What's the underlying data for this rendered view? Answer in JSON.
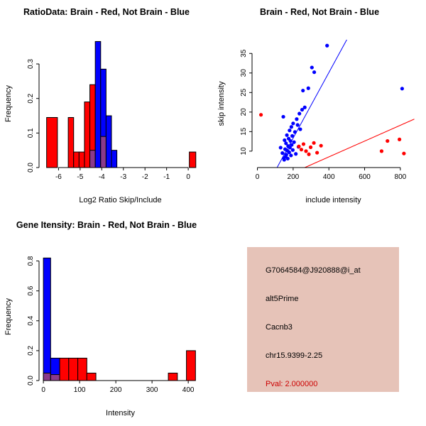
{
  "colors": {
    "brain": "#ff0000",
    "not_brain": "#0000ff",
    "overlap": "#8b3a8b",
    "axis": "#000000",
    "info_box_bg": "#e6c3b8",
    "pval_text": "#cc0000"
  },
  "panels": {
    "ratio_hist": {
      "title": "RatioData: Brain - Red, Not Brain - Blue",
      "xlabel": "Log2 Ratio Skip/Include",
      "ylabel": "Frequency"
    },
    "scatter": {
      "title": "Brain - Red, Not Brain - Blue",
      "xlabel": "include intensity",
      "ylabel": "skip intensity"
    },
    "gene_hist": {
      "title": "Gene Itensity: Brain - Red, Not Brain - Blue",
      "xlabel": "Intensity",
      "ylabel": "Frequency"
    },
    "info_box": {
      "probe_id": "G7064584@J920888@i_at",
      "event_type": "alt5Prime",
      "gene": "Cacnb3",
      "region": "chr15.9399-2.25",
      "pval": "Pval: 2.000000"
    }
  },
  "chart_data": [
    {
      "type": "bar",
      "panel": "ratio_hist",
      "title": "RatioData: Brain - Red, Not Brain - Blue",
      "xlabel": "Log2 Ratio Skip/Include",
      "ylabel": "Frequency",
      "xlim": [
        -6.9,
        0.62
      ],
      "ylim": [
        0,
        0.37
      ],
      "grid": false,
      "legend": "none",
      "xticks": [
        -6,
        -5,
        -4,
        -3,
        -2,
        -1,
        0
      ],
      "xtick_labels": [
        "-6",
        "-5",
        "-4",
        "-3",
        "-2",
        "-1",
        "0"
      ],
      "yticks": [
        0,
        0.1,
        0.2,
        0.3
      ],
      "ytick_labels": [
        "0.0",
        "0.1",
        "0.2",
        "0.3"
      ],
      "bars": [
        {
          "x0": -6.55,
          "x1": -6.05,
          "h": 0.145,
          "series": "brain"
        },
        {
          "x0": -5.55,
          "x1": -5.3,
          "h": 0.145,
          "series": "brain"
        },
        {
          "x0": -5.3,
          "x1": -5.05,
          "h": 0.045,
          "series": "brain"
        },
        {
          "x0": -5.05,
          "x1": -4.8,
          "h": 0.045,
          "series": "brain"
        },
        {
          "x0": -4.8,
          "x1": -4.55,
          "h": 0.19,
          "series": "brain"
        },
        {
          "x0": -4.55,
          "x1": -4.3,
          "h": 0.24,
          "series": "brain"
        },
        {
          "x0": -4.55,
          "x1": -4.3,
          "h": 0.05,
          "series": "overlap"
        },
        {
          "x0": -4.3,
          "x1": -4.05,
          "h": 0.365,
          "series": "not_brain"
        },
        {
          "x0": -4.05,
          "x1": -3.8,
          "h": 0.285,
          "series": "not_brain"
        },
        {
          "x0": -4.05,
          "x1": -3.8,
          "h": 0.09,
          "series": "overlap"
        },
        {
          "x0": -3.8,
          "x1": -3.55,
          "h": 0.15,
          "series": "not_brain"
        },
        {
          "x0": -3.55,
          "x1": -3.3,
          "h": 0.05,
          "series": "not_brain"
        },
        {
          "x0": 0.05,
          "x1": 0.35,
          "h": 0.045,
          "series": "brain"
        }
      ]
    },
    {
      "type": "scatter",
      "panel": "scatter",
      "title": "Brain - Red, Not Brain - Blue",
      "xlabel": "include intensity",
      "ylabel": "skip intensity",
      "xlim": [
        -30,
        880
      ],
      "ylim": [
        5.8,
        38.5
      ],
      "grid": false,
      "legend": "none",
      "xticks": [
        0,
        200,
        400,
        600,
        800
      ],
      "xtick_labels": [
        "0",
        "200",
        "400",
        "600",
        "800"
      ],
      "yticks": [
        10,
        15,
        20,
        25,
        30,
        35
      ],
      "ytick_labels": [
        "10",
        "15",
        "20",
        "25",
        "30",
        "35"
      ],
      "series": [
        {
          "name": "not_brain",
          "points": [
            [
              130,
              10.9
            ],
            [
              140,
              9.5
            ],
            [
              145,
              18.8
            ],
            [
              148,
              8.2
            ],
            [
              150,
              7.8
            ],
            [
              152,
              12.8
            ],
            [
              155,
              10.5
            ],
            [
              158,
              8.6
            ],
            [
              160,
              12.0
            ],
            [
              162,
              9.1
            ],
            [
              165,
              14.1
            ],
            [
              168,
              10.1
            ],
            [
              170,
              8.1
            ],
            [
              172,
              11.3
            ],
            [
              175,
              13.2
            ],
            [
              178,
              9.7
            ],
            [
              180,
              15.3
            ],
            [
              182,
              10.9
            ],
            [
              185,
              12.6
            ],
            [
              188,
              8.9
            ],
            [
              190,
              16.2
            ],
            [
              192,
              11.6
            ],
            [
              195,
              13.9
            ],
            [
              198,
              10.3
            ],
            [
              200,
              17.1
            ],
            [
              205,
              12.3
            ],
            [
              210,
              14.9
            ],
            [
              215,
              9.3
            ],
            [
              220,
              18.2
            ],
            [
              225,
              16.7
            ],
            [
              230,
              11.1
            ],
            [
              235,
              19.6
            ],
            [
              240,
              15.6
            ],
            [
              250,
              20.6
            ],
            [
              255,
              25.5
            ],
            [
              265,
              21.2
            ],
            [
              285,
              26.1
            ],
            [
              305,
              31.4
            ],
            [
              318,
              30.2
            ],
            [
              390,
              37.0
            ],
            [
              810,
              26.0
            ]
          ]
        },
        {
          "name": "brain",
          "points": [
            [
              20,
              19.3
            ],
            [
              232,
              11.2
            ],
            [
              246,
              10.4
            ],
            [
              258,
              11.8
            ],
            [
              272,
              10.0
            ],
            [
              288,
              9.2
            ],
            [
              298,
              11.0
            ],
            [
              316,
              12.1
            ],
            [
              334,
              9.6
            ],
            [
              356,
              11.4
            ],
            [
              695,
              10.0
            ],
            [
              728,
              12.6
            ],
            [
              795,
              13.0
            ],
            [
              820,
              9.4
            ]
          ]
        }
      ],
      "lines": [
        {
          "series": "not_brain",
          "x1": 110,
          "y1": 5.8,
          "x2": 500,
          "y2": 38.5
        },
        {
          "series": "brain",
          "x1": 265,
          "y1": 5.8,
          "x2": 878,
          "y2": 18.2
        }
      ]
    },
    {
      "type": "bar",
      "panel": "gene_hist",
      "title": "Gene Itensity: Brain - Red, Not Brain - Blue",
      "xlabel": "Intensity",
      "ylabel": "Frequency",
      "xlim": [
        -12,
        437
      ],
      "ylim": [
        0,
        0.855
      ],
      "grid": false,
      "legend": "none",
      "xticks": [
        0,
        100,
        200,
        300,
        400
      ],
      "xtick_labels": [
        "0",
        "100",
        "200",
        "300",
        "400"
      ],
      "yticks": [
        0,
        0.2,
        0.4,
        0.6,
        0.8
      ],
      "ytick_labels": [
        "0.0",
        "0.2",
        "0.4",
        "0.6",
        "0.8"
      ],
      "bars": [
        {
          "x0": 0,
          "x1": 20,
          "h": 0.82,
          "series": "not_brain"
        },
        {
          "x0": 0,
          "x1": 20,
          "h": 0.05,
          "series": "overlap"
        },
        {
          "x0": 20,
          "x1": 45,
          "h": 0.15,
          "series": "not_brain"
        },
        {
          "x0": 20,
          "x1": 45,
          "h": 0.04,
          "series": "overlap"
        },
        {
          "x0": 45,
          "x1": 70,
          "h": 0.15,
          "series": "brain"
        },
        {
          "x0": 70,
          "x1": 95,
          "h": 0.15,
          "series": "brain"
        },
        {
          "x0": 95,
          "x1": 120,
          "h": 0.15,
          "series": "brain"
        },
        {
          "x0": 120,
          "x1": 145,
          "h": 0.05,
          "series": "brain"
        },
        {
          "x0": 345,
          "x1": 370,
          "h": 0.05,
          "series": "brain"
        },
        {
          "x0": 395,
          "x1": 420,
          "h": 0.2,
          "series": "brain"
        }
      ]
    }
  ]
}
